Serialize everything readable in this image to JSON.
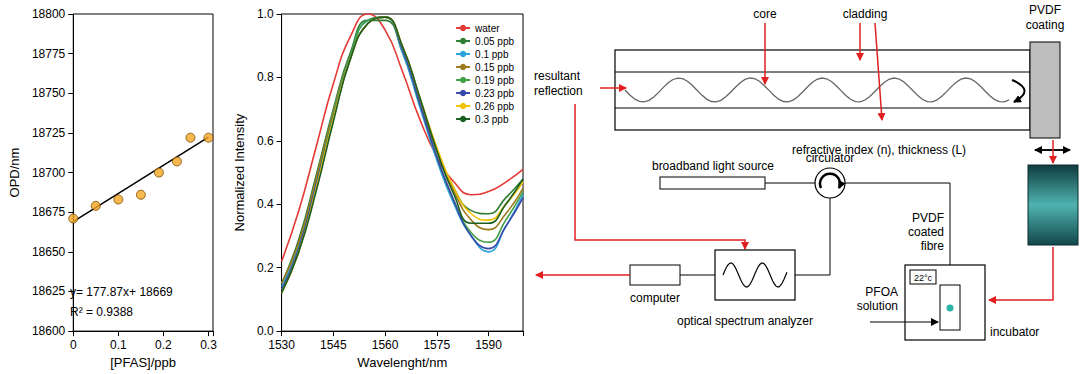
{
  "chart_data": [
    {
      "type": "scatter",
      "x_label": "[PFAS]/ppb",
      "y_label": "OPD/nm",
      "x": [
        0,
        0.05,
        0.1,
        0.15,
        0.19,
        0.23,
        0.26,
        0.3
      ],
      "values": [
        18671,
        18679,
        18683,
        18686,
        18700,
        18707,
        18722,
        18722
      ],
      "color": "#f5a623",
      "marker": "circle",
      "fit": {
        "slope": 177.87,
        "intercept": 18669
      },
      "annotations": [
        "y= 177.87x+ 18669",
        "R² = 0.9388"
      ],
      "xlim": [
        0,
        0.31
      ],
      "xticks": [
        0,
        0.1,
        0.2,
        0.3
      ],
      "ylim": [
        18600,
        18800
      ],
      "yticks": [
        18600,
        18625,
        18650,
        18675,
        18700,
        18725,
        18750,
        18775,
        18800
      ],
      "grid": false
    },
    {
      "type": "line",
      "x_label": "Wavelenght/nm",
      "y_label": "Normalized Intensity",
      "x": [
        1530,
        1535,
        1540,
        1545,
        1550,
        1555,
        1560,
        1565,
        1570,
        1575,
        1580,
        1585,
        1590,
        1595,
        1600
      ],
      "series": [
        {
          "name": "water",
          "color": "#e53935",
          "values": [
            0.22,
            0.38,
            0.58,
            0.78,
            0.93,
            1.0,
            0.95,
            0.82,
            0.67,
            0.55,
            0.47,
            0.43,
            0.44,
            0.47,
            0.51
          ]
        },
        {
          "name": "0.05 ppb",
          "color": "#2e7d32",
          "values": [
            0.15,
            0.29,
            0.49,
            0.7,
            0.88,
            0.98,
            0.98,
            0.88,
            0.72,
            0.57,
            0.45,
            0.38,
            0.37,
            0.42,
            0.48
          ]
        },
        {
          "name": "0.1 ppb",
          "color": "#29a3dd",
          "values": [
            0.14,
            0.27,
            0.47,
            0.69,
            0.87,
            0.98,
            0.99,
            0.88,
            0.71,
            0.54,
            0.4,
            0.3,
            0.25,
            0.33,
            0.43
          ]
        },
        {
          "name": "0.15 ppb",
          "color": "#9c7a1e",
          "values": [
            0.15,
            0.28,
            0.48,
            0.69,
            0.87,
            0.97,
            0.99,
            0.89,
            0.73,
            0.57,
            0.44,
            0.35,
            0.32,
            0.37,
            0.45
          ]
        },
        {
          "name": "0.19 ppb",
          "color": "#43a047",
          "values": [
            0.13,
            0.26,
            0.46,
            0.68,
            0.87,
            0.98,
            0.99,
            0.89,
            0.72,
            0.55,
            0.41,
            0.31,
            0.28,
            0.35,
            0.44
          ]
        },
        {
          "name": "0.23 ppb",
          "color": "#3949ab",
          "values": [
            0.13,
            0.26,
            0.46,
            0.67,
            0.86,
            0.97,
            0.99,
            0.89,
            0.72,
            0.55,
            0.41,
            0.3,
            0.26,
            0.33,
            0.42
          ]
        },
        {
          "name": "0.26 ppb",
          "color": "#f2c200",
          "values": [
            0.12,
            0.25,
            0.45,
            0.67,
            0.86,
            0.97,
            0.99,
            0.9,
            0.74,
            0.58,
            0.45,
            0.37,
            0.35,
            0.4,
            0.47
          ]
        },
        {
          "name": "0.3 ppb",
          "color": "#1b5e20",
          "values": [
            0.12,
            0.25,
            0.44,
            0.66,
            0.86,
            0.97,
            0.99,
            0.9,
            0.74,
            0.57,
            0.43,
            0.34,
            0.34,
            0.4,
            0.48
          ]
        }
      ],
      "xlim": [
        1530,
        1600
      ],
      "xticks": [
        1530,
        1545,
        1560,
        1575,
        1590
      ],
      "ylim": [
        0,
        1
      ],
      "yticks": [
        {
          "value": 0,
          "label": "0.0"
        },
        0.2,
        0.4,
        0.6,
        0.8,
        {
          "value": 1,
          "label": "1.0"
        }
      ],
      "legend": "upper right",
      "grid": false
    }
  ],
  "diagram": {
    "resultant_reflection": "resultant reflection",
    "core": "core",
    "cladding": "cladding",
    "coating": "PVDF coating",
    "fibre_property": "refractive index (n), thickness (L)",
    "light_source": "broadband light source",
    "circulator": "circulator",
    "computer": "computer",
    "analyzer": "optical spectrum analyzer",
    "coated_fibre": "PVDF coated fibre",
    "temperature": "22°c",
    "solution": "PFOA solution",
    "incubator": "incubator"
  }
}
